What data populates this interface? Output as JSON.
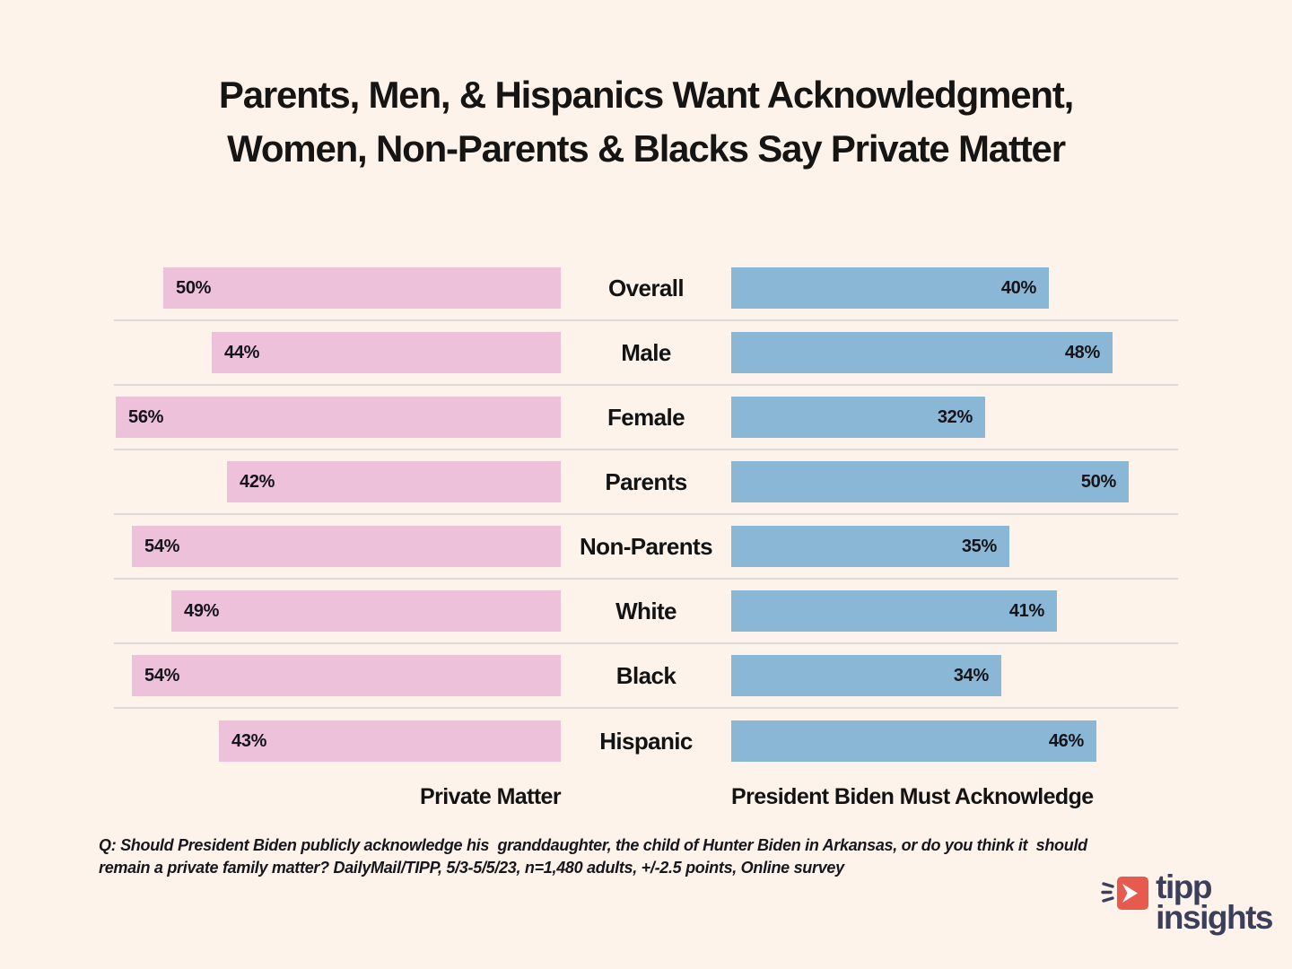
{
  "title": {
    "line1": "Parents, Men, & Hispanics Want Acknowledgment,",
    "line2": "Women, Non-Parents & Blacks Say Private Matter"
  },
  "chart_data": {
    "type": "bar",
    "variant": "diverging-horizontal",
    "categories": [
      "Overall",
      "Male",
      "Female",
      "Parents",
      "Non-Parents",
      "White",
      "Black",
      "Hispanic"
    ],
    "series": [
      {
        "name": "Private Matter",
        "side": "left",
        "color": "#EEC1DB",
        "values": [
          50,
          44,
          56,
          42,
          54,
          49,
          54,
          43
        ]
      },
      {
        "name": "President Biden Must Acknowledge",
        "side": "right",
        "color": "#8AB7D5",
        "values": [
          40,
          48,
          32,
          50,
          35,
          41,
          34,
          46
        ]
      }
    ],
    "value_suffix": "%",
    "xlim": [
      0,
      56.3
    ],
    "grid": "row-separators-only",
    "legend_position": "bottom-column-labels"
  },
  "axis_labels": {
    "left": "Private Matter",
    "right": "President Biden Must Acknowledge"
  },
  "footnote": {
    "line1": "Q: Should President Biden publicly acknowledge his  granddaughter, the child of Hunter Biden in Arkansas, or do you think it  should",
    "line2": "remain a private family matter? DailyMail/TIPP, 5/3-5/5/23, n=1,480 adults, +/-2.5 points, Online survey"
  },
  "logo": {
    "line1": "tipp",
    "line2": "insights"
  },
  "colors": {
    "background": "#FDF3EA",
    "bar_pink": "#EEC1DB",
    "bar_blue": "#8AB7D5",
    "separator": "#DBDBDB",
    "text": "#171513",
    "logo_navy": "#3B3F5B",
    "logo_red": "#E75A4E"
  }
}
